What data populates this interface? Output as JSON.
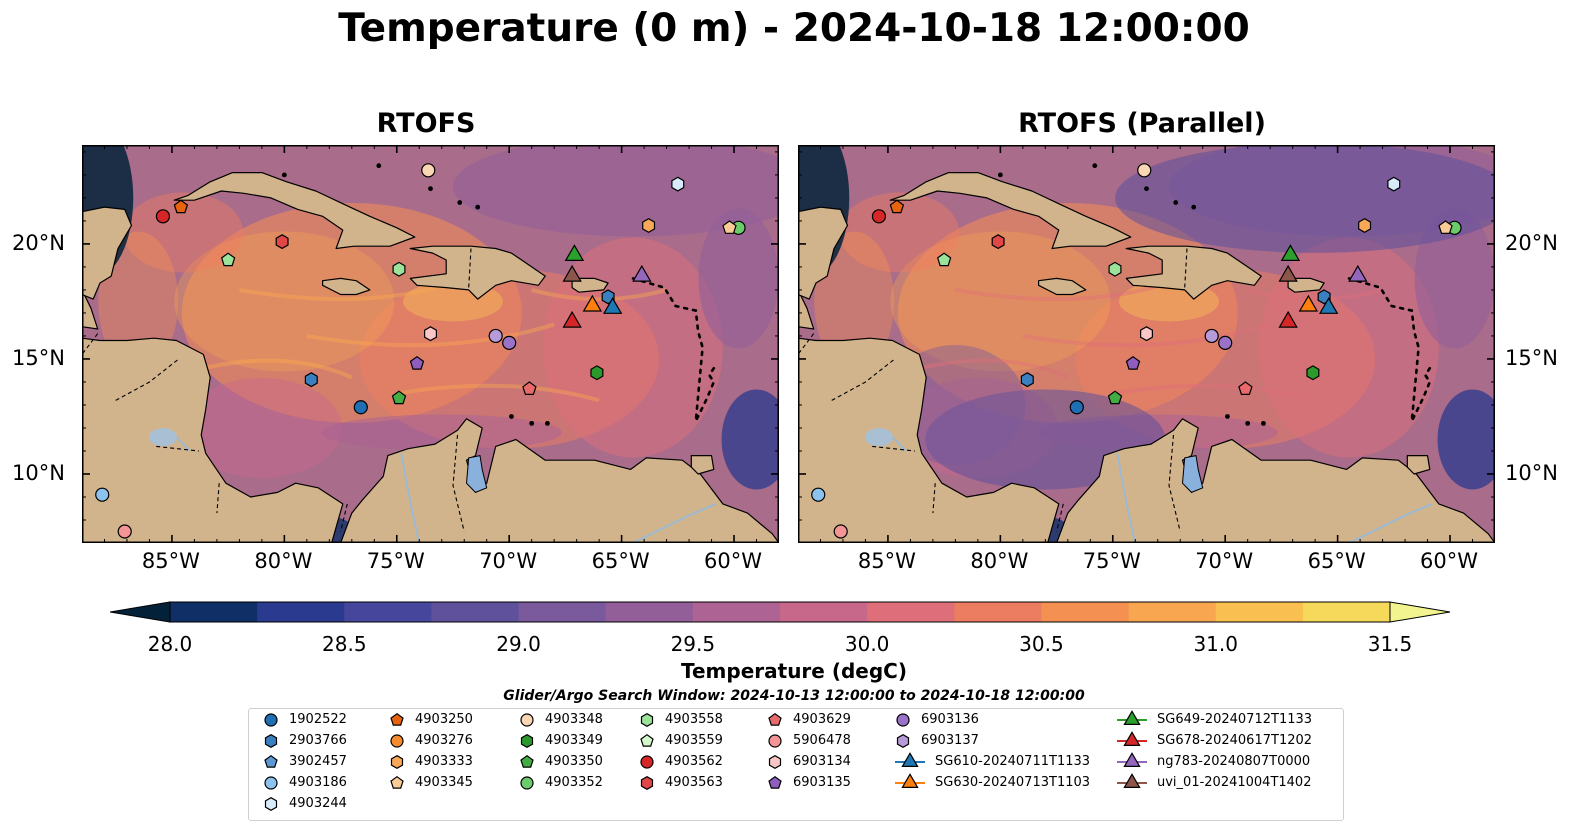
{
  "title": "Temperature (0 m) - 2024-10-18 12:00:00",
  "panels": [
    {
      "title": "RTOFS"
    },
    {
      "title": "RTOFS (Parallel)"
    }
  ],
  "map": {
    "extent": {
      "lon": [
        -89,
        -58
      ],
      "lat": [
        7,
        24.3
      ]
    },
    "lon_ticks": [
      {
        "value": -85,
        "label": "85°W"
      },
      {
        "value": -80,
        "label": "80°W"
      },
      {
        "value": -75,
        "label": "75°W"
      },
      {
        "value": -70,
        "label": "70°W"
      },
      {
        "value": -65,
        "label": "65°W"
      },
      {
        "value": -60,
        "label": "60°W"
      }
    ],
    "lat_ticks": [
      {
        "value": 20,
        "label": "20°N"
      },
      {
        "value": 15,
        "label": "15°N"
      },
      {
        "value": 10,
        "label": "10°N"
      }
    ],
    "land_color": "#d2b48c",
    "ocean_color": "#a96c8a"
  },
  "colorbar": {
    "label": "Temperature (degC)",
    "range": [
      28.0,
      31.5
    ],
    "ticks": [
      "28.0",
      "28.5",
      "29.0",
      "29.5",
      "30.0",
      "30.5",
      "31.0",
      "31.5"
    ],
    "colors": [
      "#03223a",
      "#0f2f66",
      "#2a3a8e",
      "#47469d",
      "#5f519c",
      "#7a5a9c",
      "#935f99",
      "#ad6393",
      "#c7688b",
      "#de6f7a",
      "#ed7d60",
      "#f59053",
      "#f8a64f",
      "#f9bf51",
      "#f6d95a",
      "#f1f48f"
    ]
  },
  "legend": {
    "title": "Glider/Argo Search Window: 2024-10-13 12:00:00 to 2024-10-18 12:00:00",
    "columns": [
      [
        {
          "label": "1902522",
          "marker": "circle",
          "color": "#1f6fb4"
        },
        {
          "label": "2903766",
          "marker": "hexagon",
          "color": "#3a7fbf"
        },
        {
          "label": "3902457",
          "marker": "pentagon",
          "color": "#5a99d2"
        },
        {
          "label": "4903186",
          "marker": "circle",
          "color": "#8cc3ee"
        },
        {
          "label": "4903244",
          "marker": "hexagon",
          "color": "#d7ebfa"
        }
      ],
      [
        {
          "label": "4903250",
          "marker": "pentagon",
          "color": "#e8630f"
        },
        {
          "label": "4903276",
          "marker": "circle",
          "color": "#f58a2e"
        },
        {
          "label": "4903333",
          "marker": "hexagon",
          "color": "#f9a85a"
        },
        {
          "label": "4903345",
          "marker": "pentagon",
          "color": "#fbcb96"
        }
      ],
      [
        {
          "label": "4903348",
          "marker": "circle",
          "color": "#fbd6b3"
        },
        {
          "label": "4903349",
          "marker": "hexagon",
          "color": "#2b9a2b"
        },
        {
          "label": "4903350",
          "marker": "pentagon",
          "color": "#43ad43"
        },
        {
          "label": "4903352",
          "marker": "circle",
          "color": "#6ccc6c"
        }
      ],
      [
        {
          "label": "4903558",
          "marker": "hexagon",
          "color": "#9be29b"
        },
        {
          "label": "4903559",
          "marker": "pentagon",
          "color": "#d4f7cc"
        },
        {
          "label": "4903562",
          "marker": "circle",
          "color": "#d62728"
        },
        {
          "label": "4903563",
          "marker": "hexagon",
          "color": "#e04848"
        }
      ],
      [
        {
          "label": "4903629",
          "marker": "pentagon",
          "color": "#e86a6a"
        },
        {
          "label": "5906478",
          "marker": "circle",
          "color": "#f49494"
        },
        {
          "label": "6903134",
          "marker": "hexagon",
          "color": "#fbc6c6"
        },
        {
          "label": "6903135",
          "marker": "pentagon",
          "color": "#8e5dbd"
        }
      ],
      [
        {
          "label": "6903136",
          "marker": "circle",
          "color": "#9a72c8"
        },
        {
          "label": "6903137",
          "marker": "hexagon",
          "color": "#b79ad8"
        },
        {
          "label": "SG610-20240711T1133",
          "marker": "triangle-line",
          "color": "#1f77b4"
        },
        {
          "label": "SG630-20240713T1103",
          "marker": "triangle-line",
          "color": "#ff7f0e"
        }
      ],
      [
        {
          "label": "SG649-20240712T1133",
          "marker": "triangle-line",
          "color": "#2ca02c"
        },
        {
          "label": "SG678-20240617T1202",
          "marker": "triangle-line",
          "color": "#d62728"
        },
        {
          "label": "ng783-20240807T0000",
          "marker": "triangle-line",
          "color": "#9467bd"
        },
        {
          "label": "uvi_01-20241004T1402",
          "marker": "triangle-line",
          "color": "#8c564b"
        }
      ]
    ]
  },
  "observations": [
    {
      "lon": -85.4,
      "lat": 21.2,
      "marker": "circle",
      "color": "#d62728"
    },
    {
      "lon": -84.6,
      "lat": 21.6,
      "marker": "pentagon",
      "color": "#e8630f"
    },
    {
      "lon": -80.1,
      "lat": 20.1,
      "marker": "hexagon",
      "color": "#e04848"
    },
    {
      "lon": -82.5,
      "lat": 19.3,
      "marker": "pentagon",
      "color": "#9be29b"
    },
    {
      "lon": -74.9,
      "lat": 18.9,
      "marker": "hexagon",
      "color": "#9be29b"
    },
    {
      "lon": -73.6,
      "lat": 23.2,
      "marker": "circle",
      "color": "#fbd6b3"
    },
    {
      "lon": -62.5,
      "lat": 22.6,
      "marker": "hexagon",
      "color": "#d7ebfa"
    },
    {
      "lon": -63.8,
      "lat": 20.8,
      "marker": "hexagon",
      "color": "#f9a85a"
    },
    {
      "lon": -59.8,
      "lat": 20.7,
      "marker": "circle",
      "color": "#6ccc6c"
    },
    {
      "lon": -60.2,
      "lat": 20.7,
      "marker": "pentagon",
      "color": "#fbcb96"
    },
    {
      "lon": -65.6,
      "lat": 17.7,
      "marker": "hexagon",
      "color": "#3a7fbf"
    },
    {
      "lon": -73.5,
      "lat": 16.1,
      "marker": "hexagon",
      "color": "#fbc6c6"
    },
    {
      "lon": -70.6,
      "lat": 16.0,
      "marker": "circle",
      "color": "#b79ad8"
    },
    {
      "lon": -70.0,
      "lat": 15.7,
      "marker": "circle",
      "color": "#9a72c8"
    },
    {
      "lon": -74.1,
      "lat": 14.8,
      "marker": "pentagon",
      "color": "#8e5dbd"
    },
    {
      "lon": -78.8,
      "lat": 14.1,
      "marker": "hexagon",
      "color": "#3a7fbf"
    },
    {
      "lon": -74.9,
      "lat": 13.3,
      "marker": "pentagon",
      "color": "#43ad43"
    },
    {
      "lon": -76.6,
      "lat": 12.9,
      "marker": "circle",
      "color": "#1f6fb4"
    },
    {
      "lon": -69.1,
      "lat": 13.7,
      "marker": "pentagon",
      "color": "#e86a6a"
    },
    {
      "lon": -66.1,
      "lat": 14.4,
      "marker": "hexagon",
      "color": "#2b9a2b"
    },
    {
      "lon": -88.1,
      "lat": 9.1,
      "marker": "circle",
      "color": "#8cc3ee"
    },
    {
      "lon": -87.1,
      "lat": 7.5,
      "marker": "circle",
      "color": "#f49494"
    }
  ],
  "gliders": [
    {
      "lon": -67.1,
      "lat": 19.5,
      "color": "#2ca02c"
    },
    {
      "lon": -67.2,
      "lat": 18.6,
      "color": "#8c564b"
    },
    {
      "lon": -64.1,
      "lat": 18.6,
      "color": "#9467bd"
    },
    {
      "lon": -66.3,
      "lat": 17.3,
      "color": "#ff7f0e"
    },
    {
      "lon": -65.4,
      "lat": 17.2,
      "color": "#1f77b4"
    },
    {
      "lon": -67.2,
      "lat": 16.6,
      "color": "#d62728"
    }
  ]
}
